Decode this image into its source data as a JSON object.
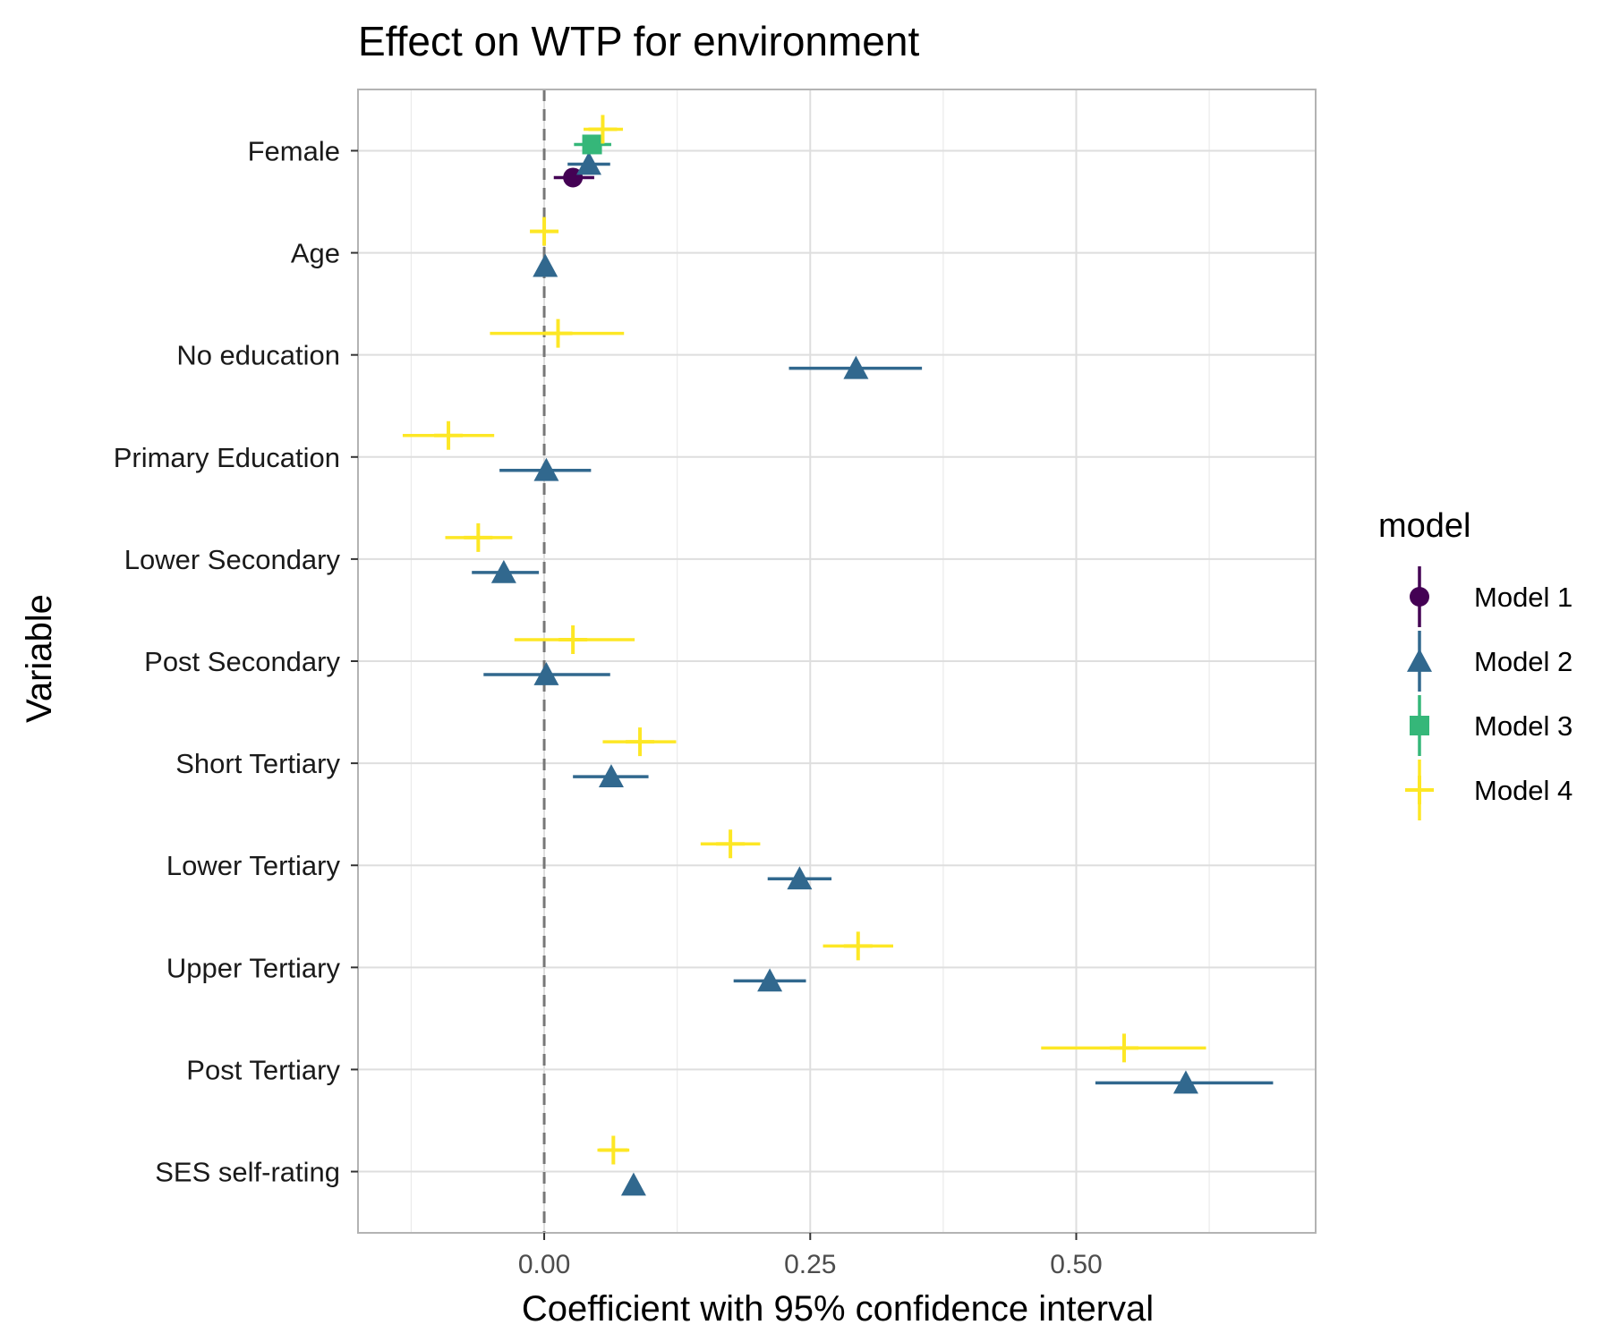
{
  "chart_data": {
    "type": "scatter",
    "title": "Effect on WTP for environment",
    "xlabel": "Coefficient with 95% confidence interval",
    "ylabel": "Variable",
    "xlim": [
      -0.175,
      0.725
    ],
    "xticks": [
      0.0,
      0.25,
      0.5
    ],
    "xtick_labels": [
      "0.00",
      "0.25",
      "0.50"
    ],
    "categories": [
      "Female",
      "Age",
      "No education",
      "Primary Education",
      "Lower Secondary",
      "Post Secondary",
      "Short Tertiary",
      "Lower Tertiary",
      "Upper Tertiary",
      "Post Tertiary",
      "SES self-rating"
    ],
    "reference_line": 0,
    "grid": true,
    "legend": {
      "title": "model",
      "position": "right"
    },
    "series": [
      {
        "name": "Model 1",
        "color": "#440154",
        "shape": "circle",
        "points": [
          {
            "category": "Female",
            "estimate": 0.027,
            "low": 0.009,
            "high": 0.047
          }
        ]
      },
      {
        "name": "Model 2",
        "color": "#31688E",
        "shape": "triangle",
        "points": [
          {
            "category": "Female",
            "estimate": 0.042,
            "low": 0.022,
            "high": 0.062
          },
          {
            "category": "Age",
            "estimate": 0.001,
            "low": -0.001,
            "high": 0.003
          },
          {
            "category": "No education",
            "estimate": 0.293,
            "low": 0.23,
            "high": 0.355
          },
          {
            "category": "Primary Education",
            "estimate": 0.002,
            "low": -0.042,
            "high": 0.044
          },
          {
            "category": "Lower Secondary",
            "estimate": -0.038,
            "low": -0.068,
            "high": -0.005
          },
          {
            "category": "Post Secondary",
            "estimate": 0.002,
            "low": -0.057,
            "high": 0.062
          },
          {
            "category": "Short Tertiary",
            "estimate": 0.063,
            "low": 0.027,
            "high": 0.098
          },
          {
            "category": "Lower Tertiary",
            "estimate": 0.24,
            "low": 0.21,
            "high": 0.27
          },
          {
            "category": "Upper Tertiary",
            "estimate": 0.212,
            "low": 0.178,
            "high": 0.246
          },
          {
            "category": "Post Tertiary",
            "estimate": 0.603,
            "low": 0.518,
            "high": 0.685
          },
          {
            "category": "SES self-rating",
            "estimate": 0.084,
            "low": 0.081,
            "high": 0.087
          }
        ]
      },
      {
        "name": "Model 3",
        "color": "#35B779",
        "shape": "square",
        "points": [
          {
            "category": "Female",
            "estimate": 0.045,
            "low": 0.028,
            "high": 0.063
          }
        ]
      },
      {
        "name": "Model 4",
        "color": "#FDE725",
        "shape": "cross",
        "points": [
          {
            "category": "Female",
            "estimate": 0.055,
            "low": 0.037,
            "high": 0.074
          },
          {
            "category": "Age",
            "estimate": 0.0,
            "low": -0.013,
            "high": 0.013
          },
          {
            "category": "No education",
            "estimate": 0.013,
            "low": -0.051,
            "high": 0.075
          },
          {
            "category": "Primary Education",
            "estimate": -0.09,
            "low": -0.133,
            "high": -0.047
          },
          {
            "category": "Lower Secondary",
            "estimate": -0.062,
            "low": -0.093,
            "high": -0.03
          },
          {
            "category": "Post Secondary",
            "estimate": 0.027,
            "low": -0.028,
            "high": 0.085
          },
          {
            "category": "Short Tertiary",
            "estimate": 0.09,
            "low": 0.055,
            "high": 0.124
          },
          {
            "category": "Lower Tertiary",
            "estimate": 0.175,
            "low": 0.147,
            "high": 0.203
          },
          {
            "category": "Upper Tertiary",
            "estimate": 0.295,
            "low": 0.262,
            "high": 0.328
          },
          {
            "category": "Post Tertiary",
            "estimate": 0.545,
            "low": 0.467,
            "high": 0.622
          },
          {
            "category": "SES self-rating",
            "estimate": 0.065,
            "low": 0.05,
            "high": 0.08
          }
        ]
      }
    ]
  }
}
